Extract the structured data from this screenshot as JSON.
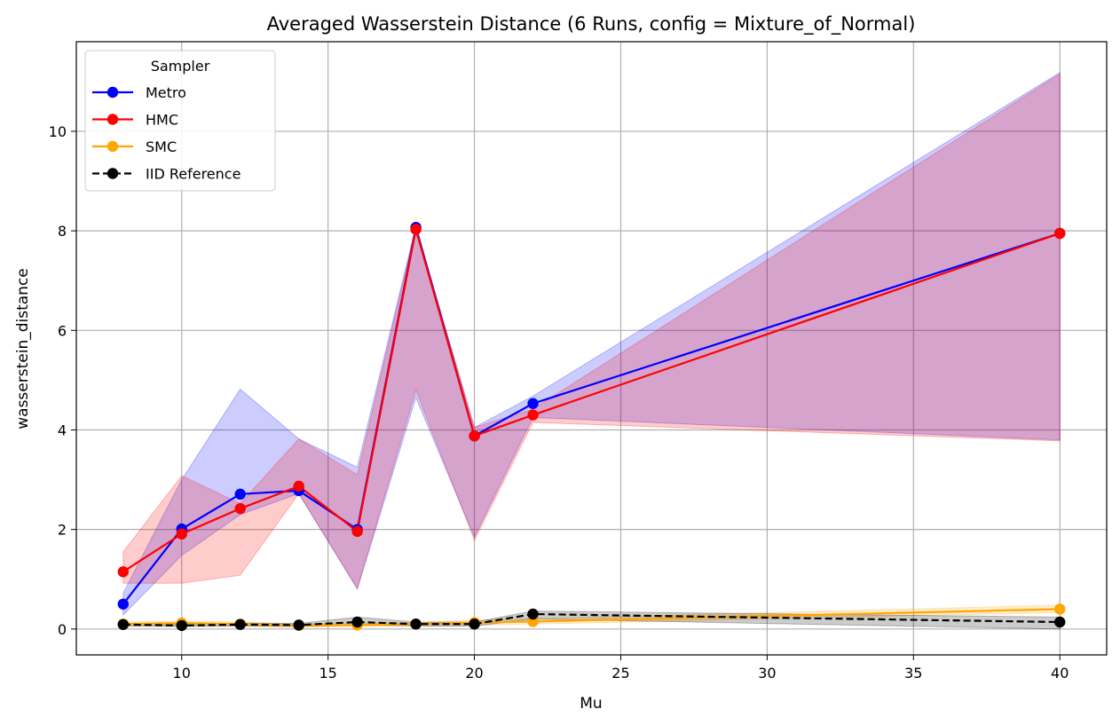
{
  "chart_data": {
    "type": "line",
    "title": "Averaged Wasserstein Distance (6 Runs, config = Mixture_of_Normal)",
    "xlabel": "Mu",
    "ylabel": "wasserstein_distance",
    "xlim": [
      6.4,
      41.6
    ],
    "ylim": [
      -0.52,
      11.8
    ],
    "xticks": [
      10,
      15,
      20,
      25,
      30,
      35,
      40
    ],
    "yticks": [
      0,
      2,
      4,
      6,
      8,
      10
    ],
    "grid": true,
    "legend": {
      "title": "Sampler",
      "position": "top-left"
    },
    "x": [
      8,
      10,
      12,
      14,
      16,
      18,
      20,
      22,
      40
    ],
    "series": [
      {
        "name": "Metro",
        "color": "#0000ff",
        "linestyle": "solid",
        "values": [
          0.5,
          2.01,
          2.71,
          2.78,
          2.0,
          8.07,
          3.88,
          4.53,
          7.95
        ],
        "band_lower": [
          0.28,
          1.48,
          2.3,
          2.72,
          0.8,
          4.65,
          1.85,
          4.25,
          3.8
        ],
        "band_upper": [
          0.72,
          3.0,
          4.82,
          3.82,
          3.25,
          8.1,
          4.05,
          4.68,
          11.18
        ]
      },
      {
        "name": "HMC",
        "color": "#ff0000",
        "linestyle": "solid",
        "values": [
          1.15,
          1.91,
          2.42,
          2.87,
          1.96,
          8.03,
          3.88,
          4.3,
          7.95
        ],
        "band_lower": [
          0.92,
          0.92,
          1.08,
          2.72,
          0.82,
          4.8,
          1.78,
          4.15,
          3.78
        ],
        "band_upper": [
          1.55,
          3.08,
          2.52,
          3.82,
          3.1,
          8.05,
          4.05,
          4.42,
          11.15
        ]
      },
      {
        "name": "SMC",
        "color": "#ffa500",
        "linestyle": "solid",
        "values": [
          0.1,
          0.12,
          0.1,
          0.07,
          0.08,
          0.1,
          0.13,
          0.15,
          0.4
        ],
        "band_lower": [
          0.06,
          0.07,
          0.06,
          0.04,
          0.05,
          0.07,
          0.08,
          0.1,
          0.33
        ],
        "band_upper": [
          0.14,
          0.16,
          0.14,
          0.1,
          0.12,
          0.13,
          0.18,
          0.21,
          0.48
        ]
      },
      {
        "name": "IID Reference",
        "color": "#000000",
        "linestyle": "dashed",
        "values": [
          0.09,
          0.07,
          0.09,
          0.08,
          0.14,
          0.1,
          0.1,
          0.3,
          0.14
        ],
        "band_lower": [
          0.06,
          0.05,
          0.06,
          0.05,
          0.08,
          0.06,
          0.06,
          0.2,
          0.0
        ],
        "band_upper": [
          0.12,
          0.09,
          0.12,
          0.11,
          0.24,
          0.14,
          0.14,
          0.36,
          0.24
        ]
      }
    ]
  }
}
